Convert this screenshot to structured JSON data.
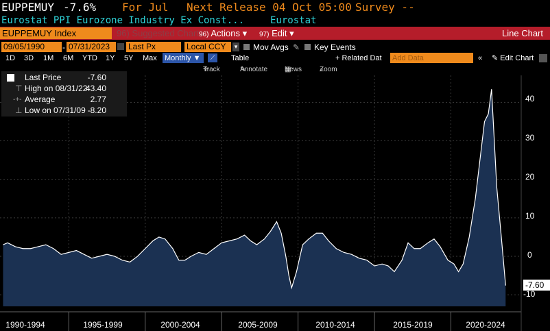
{
  "header": {
    "ticker": "EUPPEMUY",
    "change": "-7.6%",
    "period": "For Jul",
    "next_release": "Next Release 04 Oct 05:00",
    "survey": "Survey --",
    "description": "Eurostat PPI Eurozone Industry Ex Const...",
    "source": "Eurostat"
  },
  "toolbar": {
    "index_label": "EUPPEMUY Index",
    "suggested_charts": "Suggested Charts",
    "suggested_num": "96",
    "actions_label": "Actions",
    "edit_num": "97",
    "edit_label": "Edit",
    "chart_type": "Line Chart"
  },
  "range_bar": {
    "start_date": "09/05/1990",
    "end_date": "07/31/2023",
    "field": "Last Px",
    "currency": "Local CCY",
    "mov_avgs": "Mov Avgs",
    "key_events": "Key Events"
  },
  "period_bar": {
    "periods": [
      "1D",
      "3D",
      "1M",
      "6M",
      "YTD",
      "1Y",
      "5Y",
      "Max"
    ],
    "frequency": "Monthly",
    "table": "Table",
    "related_data": "+ Related Dat",
    "add_data_placeholder": "Add Data",
    "edit_chart": "Edit Chart"
  },
  "tools": {
    "track": "Track",
    "annotate": "Annotate",
    "news": "News",
    "zoom": "Zoom"
  },
  "legend": {
    "last_price_label": "Last Price",
    "last_price_value": "-7.60",
    "high_label": "High on 08/31/22",
    "high_value": "43.40",
    "average_label": "Average",
    "average_value": "2.77",
    "low_label": "Low on 07/31/09",
    "low_value": "-8.20"
  },
  "last_value_badge": "-7.60",
  "chart_data": {
    "type": "area",
    "series": [
      {
        "name": "Last Price",
        "points": [
          [
            "1990.7",
            3
          ],
          [
            "1991.0",
            3.5
          ],
          [
            "1991.5",
            2.5
          ],
          [
            "1992.0",
            2
          ],
          [
            "1992.5",
            2
          ],
          [
            "1993.0",
            2.5
          ],
          [
            "1993.5",
            3
          ],
          [
            "1994.0",
            2
          ],
          [
            "1994.5",
            0.5
          ],
          [
            "1995.0",
            1
          ],
          [
            "1995.5",
            1.5
          ],
          [
            "1996.0",
            0.5
          ],
          [
            "1996.5",
            -0.5
          ],
          [
            "1997.0",
            0
          ],
          [
            "1997.5",
            0.5
          ],
          [
            "1998.0",
            0
          ],
          [
            "1998.5",
            -1
          ],
          [
            "1999.0",
            -1.5
          ],
          [
            "1999.5",
            0
          ],
          [
            "2000.0",
            2
          ],
          [
            "2000.5",
            4
          ],
          [
            "2000.9",
            5
          ],
          [
            "2001.3",
            4.5
          ],
          [
            "2001.8",
            2
          ],
          [
            "2002.2",
            -1
          ],
          [
            "2002.6",
            -1
          ],
          [
            "2003.0",
            0
          ],
          [
            "2003.5",
            1
          ],
          [
            "2004.0",
            0.5
          ],
          [
            "2004.5",
            2
          ],
          [
            "2005.0",
            3.5
          ],
          [
            "2005.5",
            4
          ],
          [
            "2006.0",
            4.5
          ],
          [
            "2006.5",
            5.5
          ],
          [
            "2006.9",
            4
          ],
          [
            "2007.3",
            3
          ],
          [
            "2007.8",
            4.5
          ],
          [
            "2008.2",
            6.5
          ],
          [
            "2008.6",
            9
          ],
          [
            "2008.9",
            6
          ],
          [
            "2009.2",
            0
          ],
          [
            "2009.4",
            -5
          ],
          [
            "2009.58",
            -8.2
          ],
          [
            "2009.9",
            -4
          ],
          [
            "2010.3",
            3
          ],
          [
            "2010.7",
            4.5
          ],
          [
            "2011.2",
            6
          ],
          [
            "2011.6",
            6
          ],
          [
            "2012.0",
            4
          ],
          [
            "2012.5",
            2
          ],
          [
            "2013.0",
            1
          ],
          [
            "2013.5",
            0.5
          ],
          [
            "2014.0",
            -0.5
          ],
          [
            "2014.5",
            -1
          ],
          [
            "2015.0",
            -2.5
          ],
          [
            "2015.5",
            -2
          ],
          [
            "2015.9",
            -2.5
          ],
          [
            "2016.3",
            -4
          ],
          [
            "2016.8",
            -1
          ],
          [
            "2017.2",
            3.5
          ],
          [
            "2017.6",
            2
          ],
          [
            "2018.0",
            2
          ],
          [
            "2018.5",
            3.5
          ],
          [
            "2018.9",
            4.5
          ],
          [
            "2019.3",
            2.5
          ],
          [
            "2019.8",
            -1
          ],
          [
            "2020.2",
            -2
          ],
          [
            "2020.5",
            -4
          ],
          [
            "2020.8",
            -2
          ],
          [
            "2021.2",
            5
          ],
          [
            "2021.6",
            15
          ],
          [
            "2021.9",
            25
          ],
          [
            "2022.2",
            35
          ],
          [
            "2022.45",
            37
          ],
          [
            "2022.66",
            43.4
          ],
          [
            "2022.8",
            33
          ],
          [
            "2023.0",
            18
          ],
          [
            "2023.3",
            5
          ],
          [
            "2023.58",
            -7.6
          ]
        ]
      }
    ],
    "xlabels": [
      "1990-1994",
      "1995-1999",
      "2000-2004",
      "2005-2009",
      "2010-2014",
      "2015-2019",
      "2020-2024"
    ],
    "yticks": [
      40,
      30,
      20,
      10,
      0,
      -10
    ],
    "ylim": [
      -13,
      47
    ],
    "xlim": [
      1990.5,
      2024.6
    ],
    "colors": {
      "fill": "#1b3152",
      "line": "#ffffff",
      "grid": "#3b3b3b"
    }
  }
}
